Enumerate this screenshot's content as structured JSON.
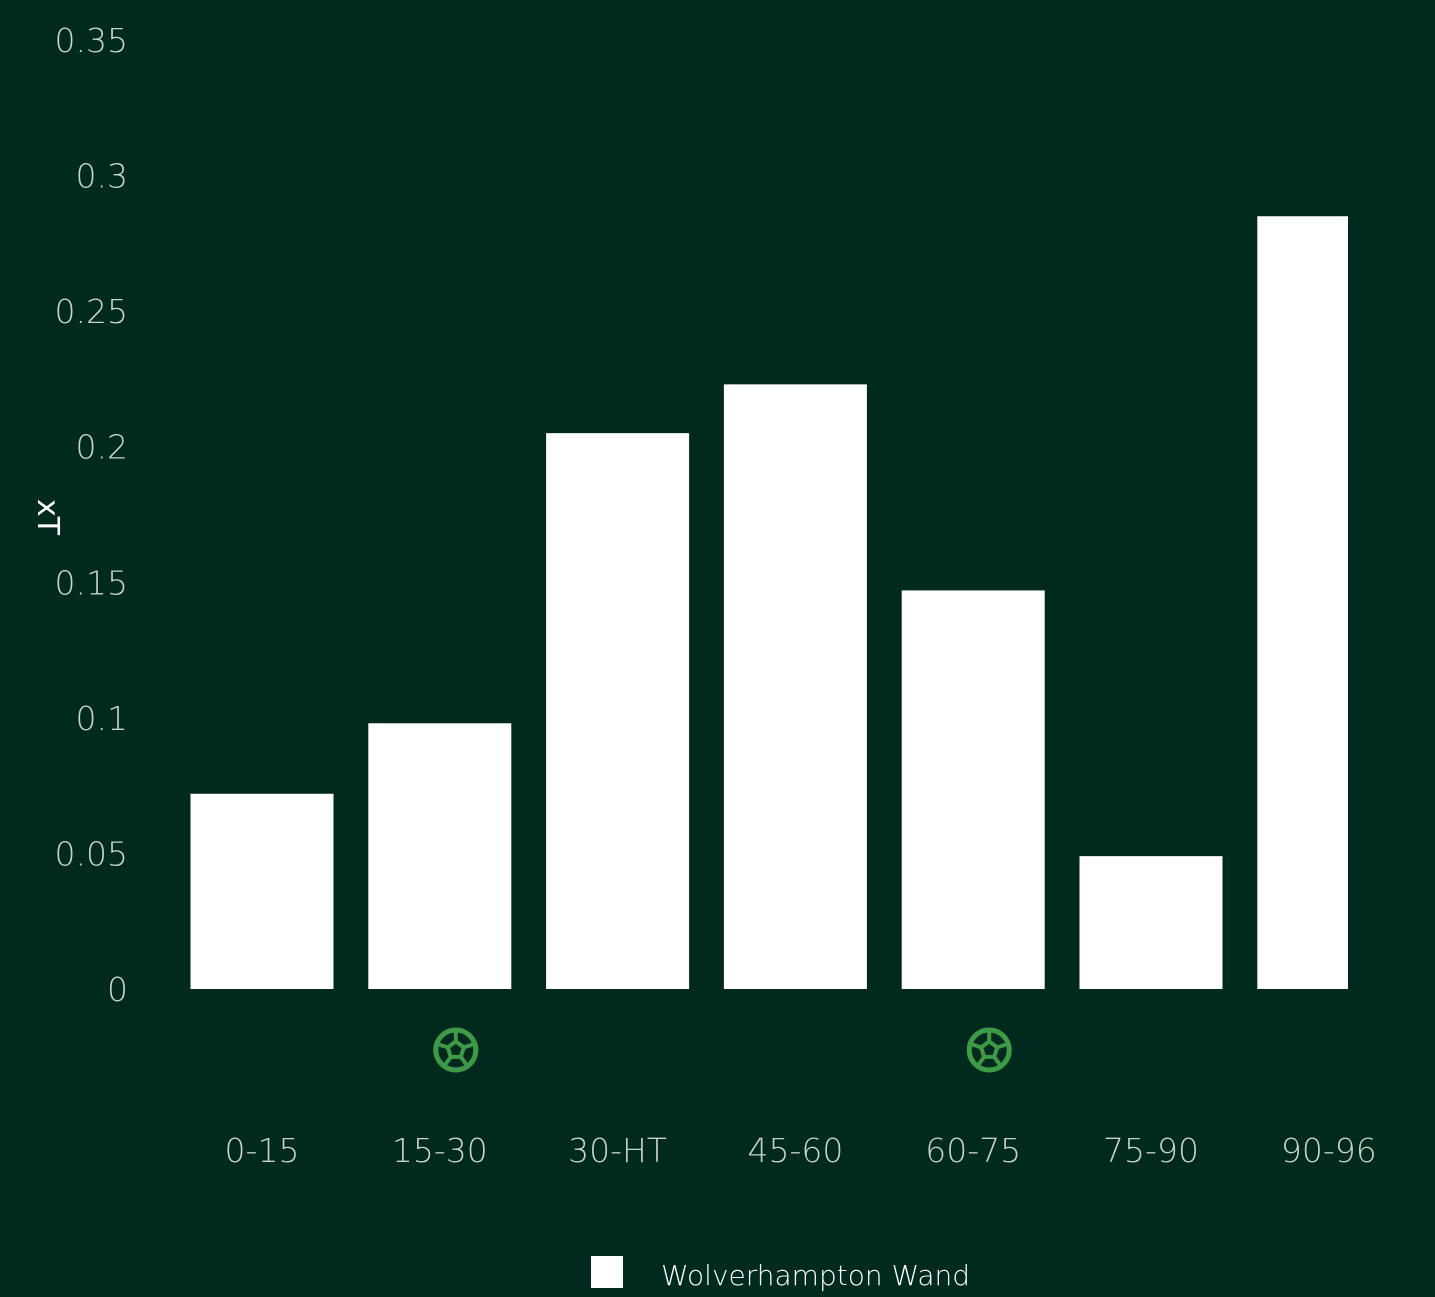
{
  "colors": {
    "background": "#002a1e",
    "bar": "#ffffff",
    "tick_text": "#c9d2cd",
    "goal_icon": "#3f9a47"
  },
  "chart_data": {
    "type": "bar",
    "categories": [
      "0-15",
      "15-30",
      "30-HT",
      "45-60",
      "60-75",
      "75-90",
      "90-96"
    ],
    "series": [
      {
        "name": "Wolverhampton Wand",
        "values": [
          0.072,
          0.098,
          0.205,
          0.223,
          0.147,
          0.049,
          0.285
        ]
      }
    ],
    "y_ticks": [
      "0",
      "0.05",
      "0.1",
      "0.15",
      "0.2",
      "0.25",
      "0.3",
      "0.35"
    ],
    "ylabel": "xT",
    "xlabel": "",
    "ylim": [
      0,
      0.35
    ],
    "grid": false,
    "legend_position": "bottom-center",
    "goal_markers": [
      {
        "category": "15-30",
        "icon": "football-icon"
      },
      {
        "category": "60-75",
        "icon": "football-icon"
      }
    ]
  }
}
